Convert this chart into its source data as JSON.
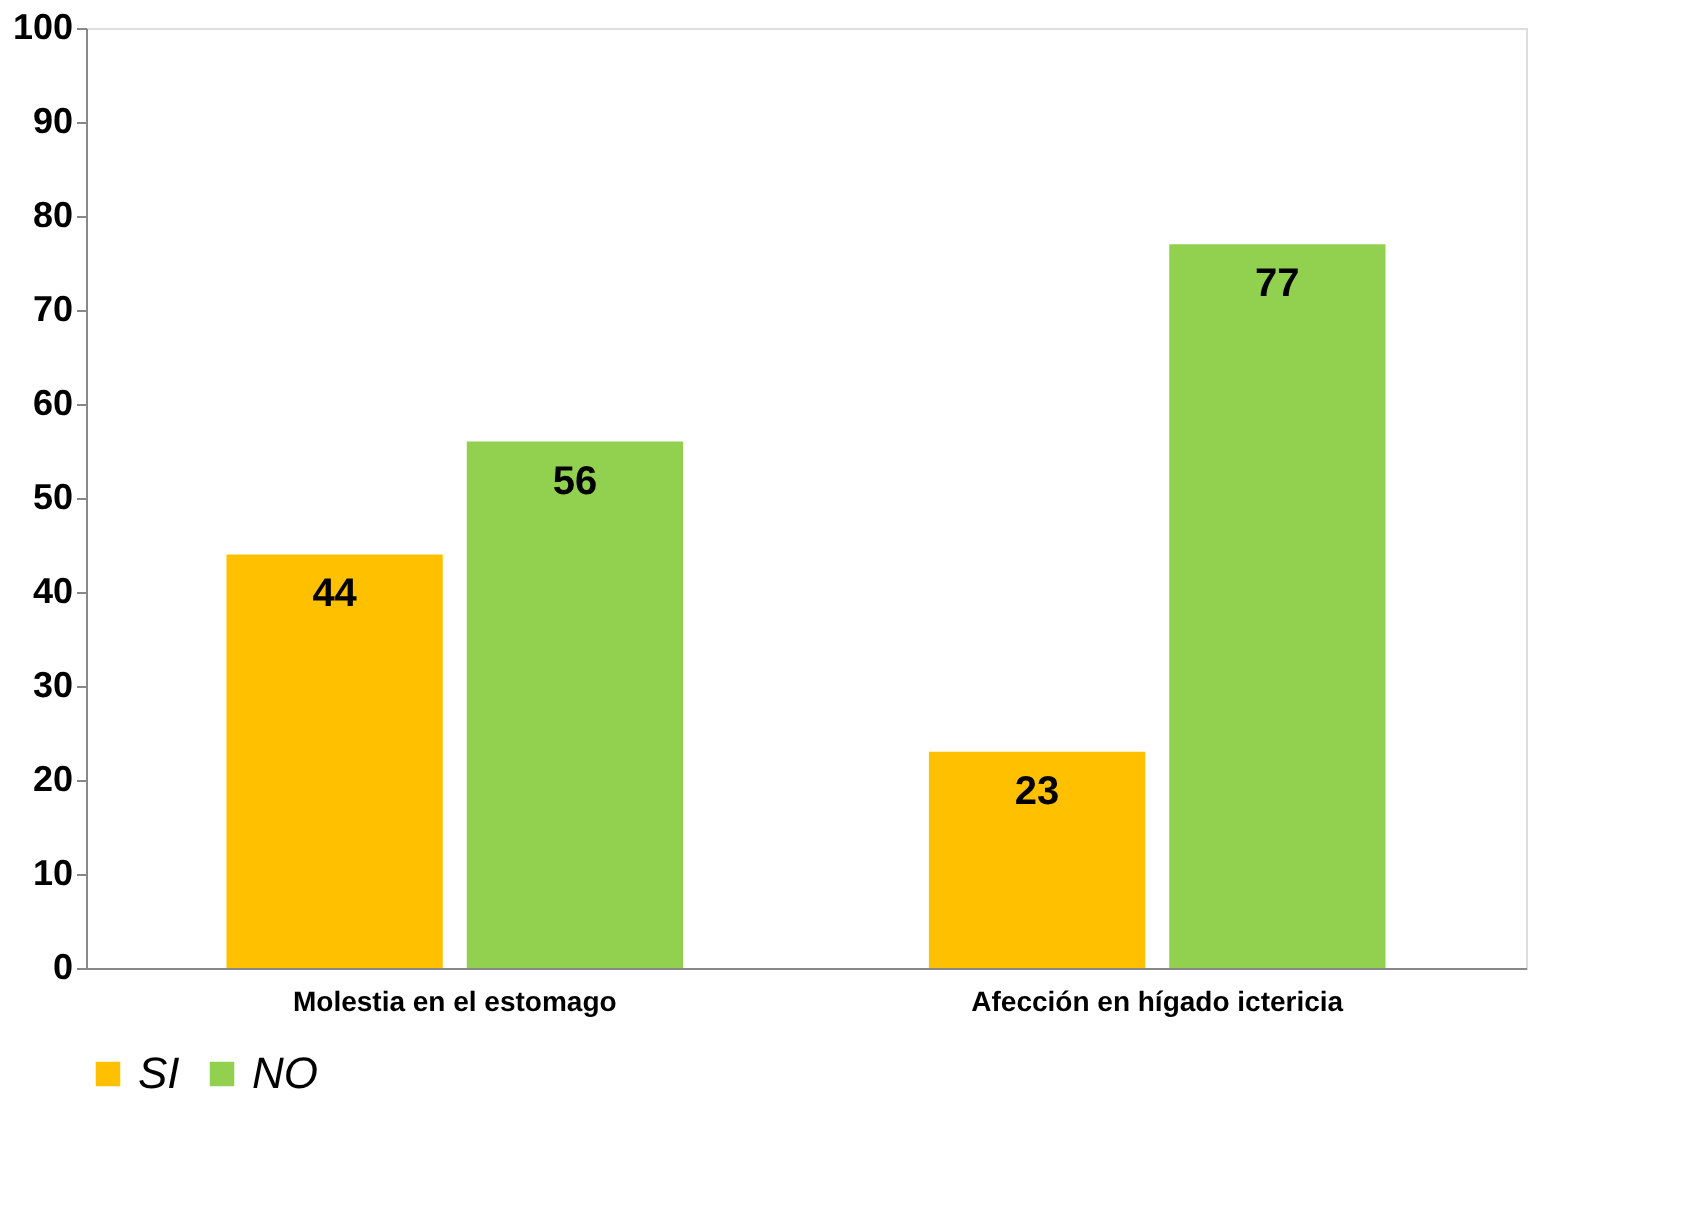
{
  "chart_data": {
    "type": "bar",
    "categories": [
      "Molestia en el estomago",
      "Afección en hígado ictericia"
    ],
    "series": [
      {
        "name": "SI",
        "color": "#ffc000",
        "values": [
          44,
          23
        ]
      },
      {
        "name": "NO",
        "color": "#92d050",
        "values": [
          56,
          77
        ]
      }
    ],
    "ylim": [
      0,
      100
    ],
    "yticks": [
      0,
      10,
      20,
      30,
      40,
      50,
      60,
      70,
      80,
      90,
      100
    ],
    "grid": false,
    "legend": "bottom",
    "data_labels": true
  }
}
